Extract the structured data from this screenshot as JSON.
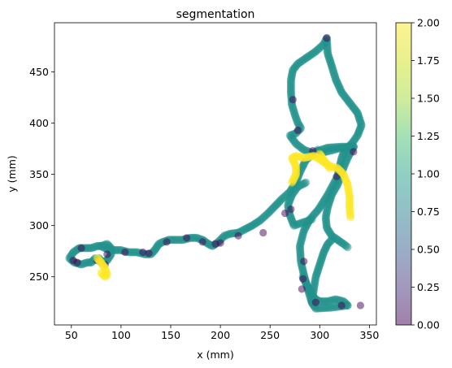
{
  "chart_data": {
    "type": "scatter",
    "title": "segmentation",
    "xlabel": "x (mm)",
    "ylabel": "y (mm)",
    "xlim": [
      33,
      357
    ],
    "ylim": [
      203,
      498
    ],
    "xticks": [
      50,
      100,
      150,
      200,
      250,
      300,
      350
    ],
    "yticks": [
      250,
      300,
      350,
      400,
      450
    ],
    "grid": false,
    "marker_alpha": 0.5,
    "colorbar": {
      "range": [
        0,
        2
      ],
      "ticks": [
        "0.00",
        "0.25",
        "0.50",
        "0.75",
        "1.00",
        "1.25",
        "1.50",
        "1.75",
        "2.00"
      ],
      "colormap": "viridis"
    },
    "colors": {
      "0": "#440154",
      "1": "#21918c",
      "2": "#fde725"
    },
    "series": [
      {
        "value": 1,
        "paths": [
          [
            [
              328,
              222
            ],
            [
              312,
              220
            ],
            [
              296,
              219
            ],
            [
              292,
              225
            ],
            [
              288,
              238
            ],
            [
              284,
              252
            ],
            [
              281,
              265
            ],
            [
              280,
              280
            ],
            [
              284,
              295
            ],
            [
              290,
              306
            ],
            [
              299,
              316
            ],
            [
              308,
              330
            ],
            [
              318,
              348
            ],
            [
              322,
              366
            ],
            [
              325,
              373
            ],
            [
              333,
              381
            ],
            [
              338,
              388
            ],
            [
              342,
              398
            ],
            [
              338,
              410
            ],
            [
              330,
              420
            ],
            [
              322,
              430
            ],
            [
              316,
              443
            ],
            [
              312,
              456
            ],
            [
              308,
              468
            ],
            [
              307,
              483
            ],
            [
              304,
              477
            ],
            [
              296,
              470
            ],
            [
              287,
              464
            ],
            [
              278,
              458
            ],
            [
              273,
              452
            ],
            [
              271,
              442
            ],
            [
              271,
              430
            ],
            [
              272,
              418
            ],
            [
              275,
              408
            ],
            [
              278,
              400
            ],
            [
              281,
              395
            ],
            [
              276,
              390
            ],
            [
              270,
              388
            ],
            [
              276,
              380
            ],
            [
              284,
              374
            ],
            [
              292,
              371
            ],
            [
              298,
              370
            ],
            [
              306,
              372
            ],
            [
              318,
              375
            ],
            [
              334,
              377
            ]
          ],
          [
            [
              297,
              370
            ],
            [
              298,
              374
            ]
          ],
          [
            [
              334,
              377
            ],
            [
              328,
              366
            ],
            [
              322,
              352
            ],
            [
              318,
              340
            ],
            [
              312,
              330
            ],
            [
              308,
              318
            ],
            [
              306,
              308
            ],
            [
              307,
              298
            ],
            [
              312,
              290
            ],
            [
              318,
              286
            ],
            [
              324,
              282
            ],
            [
              328,
              279
            ]
          ],
          [
            [
              334,
              377
            ],
            [
              322,
              377
            ],
            [
              308,
              376
            ],
            [
              296,
              372
            ],
            [
              286,
              364
            ],
            [
              280,
              352
            ],
            [
              276,
              342
            ],
            [
              270,
              333
            ],
            [
              262,
              326
            ],
            [
              254,
              318
            ],
            [
              248,
              312
            ],
            [
              240,
              305
            ],
            [
              232,
              300
            ],
            [
              224,
              296
            ],
            [
              218,
              293
            ],
            [
              210,
              292
            ],
            [
              204,
              290
            ],
            [
              198,
              284
            ],
            [
              192,
              280
            ],
            [
              188,
              282
            ],
            [
              182,
              286
            ],
            [
              176,
              288
            ],
            [
              170,
              288
            ],
            [
              162,
              286
            ],
            [
              154,
              286
            ],
            [
              148,
              286
            ],
            [
              142,
              284
            ],
            [
              138,
              282
            ],
            [
              134,
              276
            ],
            [
              130,
              272
            ],
            [
              124,
              272
            ],
            [
              116,
              274
            ],
            [
              108,
              274
            ],
            [
              100,
              276
            ],
            [
              94,
              276
            ],
            [
              88,
              276
            ],
            [
              84,
              278
            ],
            [
              80,
              280
            ],
            [
              76,
              280
            ],
            [
              70,
              278
            ],
            [
              64,
              278
            ],
            [
              58,
              278
            ],
            [
              52,
              274
            ],
            [
              48,
              268
            ],
            [
              53,
              264
            ],
            [
              60,
              262
            ],
            [
              66,
              264
            ],
            [
              70,
              264
            ],
            [
              74,
              268
            ]
          ],
          [
            [
              80,
              280
            ],
            [
              86,
              282
            ],
            [
              90,
              278
            ],
            [
              90,
              272
            ],
            [
              86,
              266
            ],
            [
              80,
              264
            ],
            [
              78,
              268
            ]
          ],
          [
            [
              292,
              306
            ],
            [
              286,
              304
            ],
            [
              280,
              302
            ],
            [
              274,
              300
            ],
            [
              270,
              310
            ],
            [
              268,
              320
            ],
            [
              272,
              330
            ],
            [
              278,
              338
            ],
            [
              286,
              342
            ]
          ],
          [
            [
              292,
              225
            ],
            [
              294,
              238
            ],
            [
              296,
              250
            ],
            [
              300,
              262
            ],
            [
              304,
              274
            ],
            [
              308,
              282
            ],
            [
              312,
              286
            ]
          ],
          [
            [
              283,
              250
            ],
            [
              288,
              240
            ],
            [
              292,
              232
            ],
            [
              296,
              228
            ],
            [
              300,
              226
            ],
            [
              308,
              226
            ],
            [
              316,
              228
            ],
            [
              324,
              226
            ],
            [
              328,
              222
            ]
          ]
        ]
      },
      {
        "value": 0,
        "points": [
          [
            307,
            483
          ],
          [
            273,
            423
          ],
          [
            278,
            393
          ],
          [
            293,
            373
          ],
          [
            318,
            355
          ],
          [
            317,
            348
          ],
          [
            296,
            225
          ],
          [
            322,
            222
          ],
          [
            341,
            222
          ],
          [
            282,
            238
          ],
          [
            283,
            248
          ],
          [
            284,
            265
          ],
          [
            271,
            316
          ],
          [
            265,
            312
          ],
          [
            243,
            293
          ],
          [
            218,
            290
          ],
          [
            200,
            283
          ],
          [
            195,
            282
          ],
          [
            182,
            284
          ],
          [
            166,
            288
          ],
          [
            146,
            284
          ],
          [
            128,
            273
          ],
          [
            122,
            274
          ],
          [
            104,
            274
          ],
          [
            86,
            272
          ],
          [
            84,
            262
          ],
          [
            76,
            266
          ],
          [
            56,
            264
          ],
          [
            60,
            278
          ],
          [
            52,
            266
          ],
          [
            334,
            372
          ]
        ]
      },
      {
        "value": 2,
        "paths": [
          [
            [
              272,
              342
            ],
            [
              276,
              350
            ],
            [
              276,
              358
            ],
            [
              272,
              366
            ],
            [
              276,
              368
            ],
            [
              284,
              366
            ],
            [
              294,
              368
            ],
            [
              298,
              366
            ],
            [
              304,
              362
            ],
            [
              310,
              358
            ],
            [
              318,
              356
            ],
            [
              324,
              350
            ],
            [
              328,
              340
            ],
            [
              330,
              328
            ],
            [
              330,
              318
            ],
            [
              331,
              308
            ]
          ],
          [
            [
              300,
              370
            ],
            [
              304,
              364
            ],
            [
              310,
              356
            ]
          ],
          [
            [
              76,
              268
            ],
            [
              80,
              264
            ],
            [
              84,
              258
            ],
            [
              86,
              252
            ],
            [
              84,
              250
            ],
            [
              80,
              254
            ]
          ]
        ]
      }
    ]
  }
}
